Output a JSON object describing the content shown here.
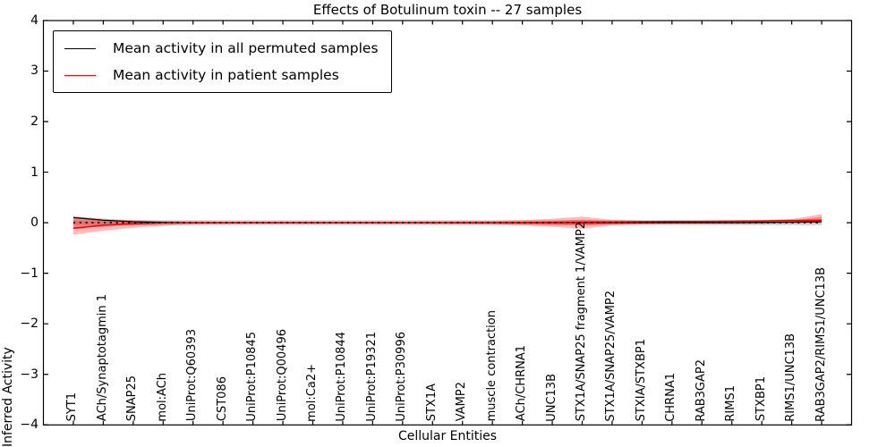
{
  "figure": {
    "title": "Effects of Botulinum toxin -- 27 samples",
    "xlabel": "Cellular Entities",
    "ylabel": "Inferred Activity"
  },
  "legend": {
    "position": "upper left",
    "items": [
      {
        "label": "Mean activity in all permuted samples",
        "color": "#000000"
      },
      {
        "label": "Mean activity in patient samples",
        "color": "#ff0000"
      }
    ]
  },
  "colors": {
    "frame": "#000000",
    "permuted_line": "#000000",
    "patient_line": "#ff0000",
    "zero_dotted_line": "#000000",
    "patient_band": "rgba(255,0,0,0.27)",
    "permuted_band": "rgba(130,130,130,0.35)",
    "background": "#ffffff"
  },
  "chart_data": {
    "type": "line",
    "title": "Effects of Botulinum toxin -- 27 samples",
    "xlabel": "Cellular Entities",
    "ylabel": "Inferred Activity",
    "ylim": [
      -4,
      4
    ],
    "yticks": [
      4,
      3,
      2,
      1,
      0,
      -1,
      -2,
      -3,
      -4
    ],
    "ytick_labels": [
      "4",
      "3",
      "2",
      "1",
      "0",
      "−1",
      "−2",
      "−3",
      "−4"
    ],
    "grid": false,
    "legend_position": "upper left",
    "categories": [
      "SYT1",
      "ACh/Synaptotagmin 1",
      "SNAP25",
      "mol:ACh",
      "UniProt:Q60393",
      "CST086",
      "UniProt:P10845",
      "UniProt:Q00496",
      "mol:Ca2+",
      "UniProt:P10844",
      "UniProt:P19321",
      "UniProt:P30996",
      "STX1A",
      "VAMP2",
      "muscle contraction",
      "ACh/CHRNA1",
      "UNC13B",
      "STX1A/SNAP25 fragment 1/VAMP2",
      "STX1A/SNAP25/VAMP2",
      "STXIA/STXBP1",
      "CHRNA1",
      "RAB3GAP2",
      "RIMS1",
      "STXBP1",
      "RIMS1/UNC13B",
      "RAB3GAP2/RIMS1/UNC13B"
    ],
    "series": [
      {
        "name": "Mean activity in all permuted samples",
        "color": "#000000",
        "style": "solid",
        "values": [
          0.1,
          0.05,
          0.02,
          0.005,
          0,
          0,
          0,
          0,
          0,
          0,
          0,
          0,
          0,
          0,
          0,
          0,
          0,
          0,
          0,
          0,
          0,
          0,
          0,
          0.005,
          0.01,
          0.02
        ]
      },
      {
        "name": "Mean activity in patient samples",
        "color": "#ff0000",
        "style": "solid",
        "values": [
          -0.11,
          -0.05,
          -0.02,
          -0.005,
          0,
          0,
          0,
          0,
          0,
          0,
          0,
          0,
          0,
          0,
          0,
          0.003,
          0.006,
          0.01,
          0.015,
          0.02,
          0.025,
          0.025,
          0.03,
          0.035,
          0.045,
          0.05
        ]
      }
    ],
    "zero_reference_line": {
      "value": 0,
      "style": "dotted",
      "color": "#000000"
    },
    "bands": [
      {
        "name": "permuted-samples-spread",
        "color": "rgba(130,130,130,0.35)",
        "top": [
          0.05,
          0.05,
          0.05,
          0.05,
          0.05,
          0.05,
          0.05,
          0.05,
          0.05,
          0.05,
          0.05,
          0.05,
          0.05,
          0.05,
          0.05,
          0.05,
          0.05,
          0.05,
          0.05,
          0.05,
          0.05,
          0.05,
          0.05,
          0.05,
          0.05,
          0.05
        ],
        "bottom": [
          -0.05,
          -0.05,
          -0.05,
          -0.05,
          -0.05,
          -0.05,
          -0.05,
          -0.05,
          -0.05,
          -0.05,
          -0.05,
          -0.05,
          -0.05,
          -0.05,
          -0.05,
          -0.05,
          -0.05,
          -0.05,
          -0.05,
          -0.05,
          -0.05,
          -0.05,
          -0.05,
          -0.05,
          -0.05,
          -0.05
        ]
      },
      {
        "name": "patient-samples-outer-spread",
        "color": "rgba(255,0,0,0.27)",
        "top": [
          0.13,
          0.08,
          0.05,
          0.035,
          0.025,
          0.02,
          0.02,
          0.02,
          0.02,
          0.02,
          0.02,
          0.02,
          0.025,
          0.03,
          0.035,
          0.05,
          0.08,
          0.12,
          0.06,
          0.04,
          0.035,
          0.035,
          0.04,
          0.05,
          0.07,
          0.17
        ],
        "bottom": [
          -0.24,
          -0.16,
          -0.1,
          -0.06,
          -0.035,
          -0.025,
          -0.02,
          -0.02,
          -0.02,
          -0.02,
          -0.02,
          -0.02,
          -0.025,
          -0.03,
          -0.035,
          -0.05,
          -0.08,
          -0.12,
          -0.05,
          -0.03,
          -0.02,
          -0.02,
          -0.02,
          -0.02,
          -0.01,
          -0.01
        ]
      },
      {
        "name": "patient-samples-inner-spread",
        "color": "rgba(255,0,0,0.27)",
        "top": [
          0.08,
          0.04,
          0.02,
          0.012,
          0.008,
          0.008,
          0.008,
          0.008,
          0.008,
          0.008,
          0.008,
          0.008,
          0.01,
          0.012,
          0.015,
          0.02,
          0.035,
          0.06,
          0.03,
          0.02,
          0.02,
          0.02,
          0.025,
          0.03,
          0.04,
          0.12
        ],
        "bottom": [
          -0.12,
          -0.07,
          -0.04,
          -0.02,
          -0.012,
          -0.01,
          -0.01,
          -0.01,
          -0.01,
          -0.01,
          -0.01,
          -0.01,
          -0.012,
          -0.015,
          -0.018,
          -0.025,
          -0.04,
          -0.06,
          -0.025,
          -0.015,
          -0.01,
          -0.01,
          -0.01,
          -0.01,
          0,
          0.02
        ]
      }
    ]
  }
}
